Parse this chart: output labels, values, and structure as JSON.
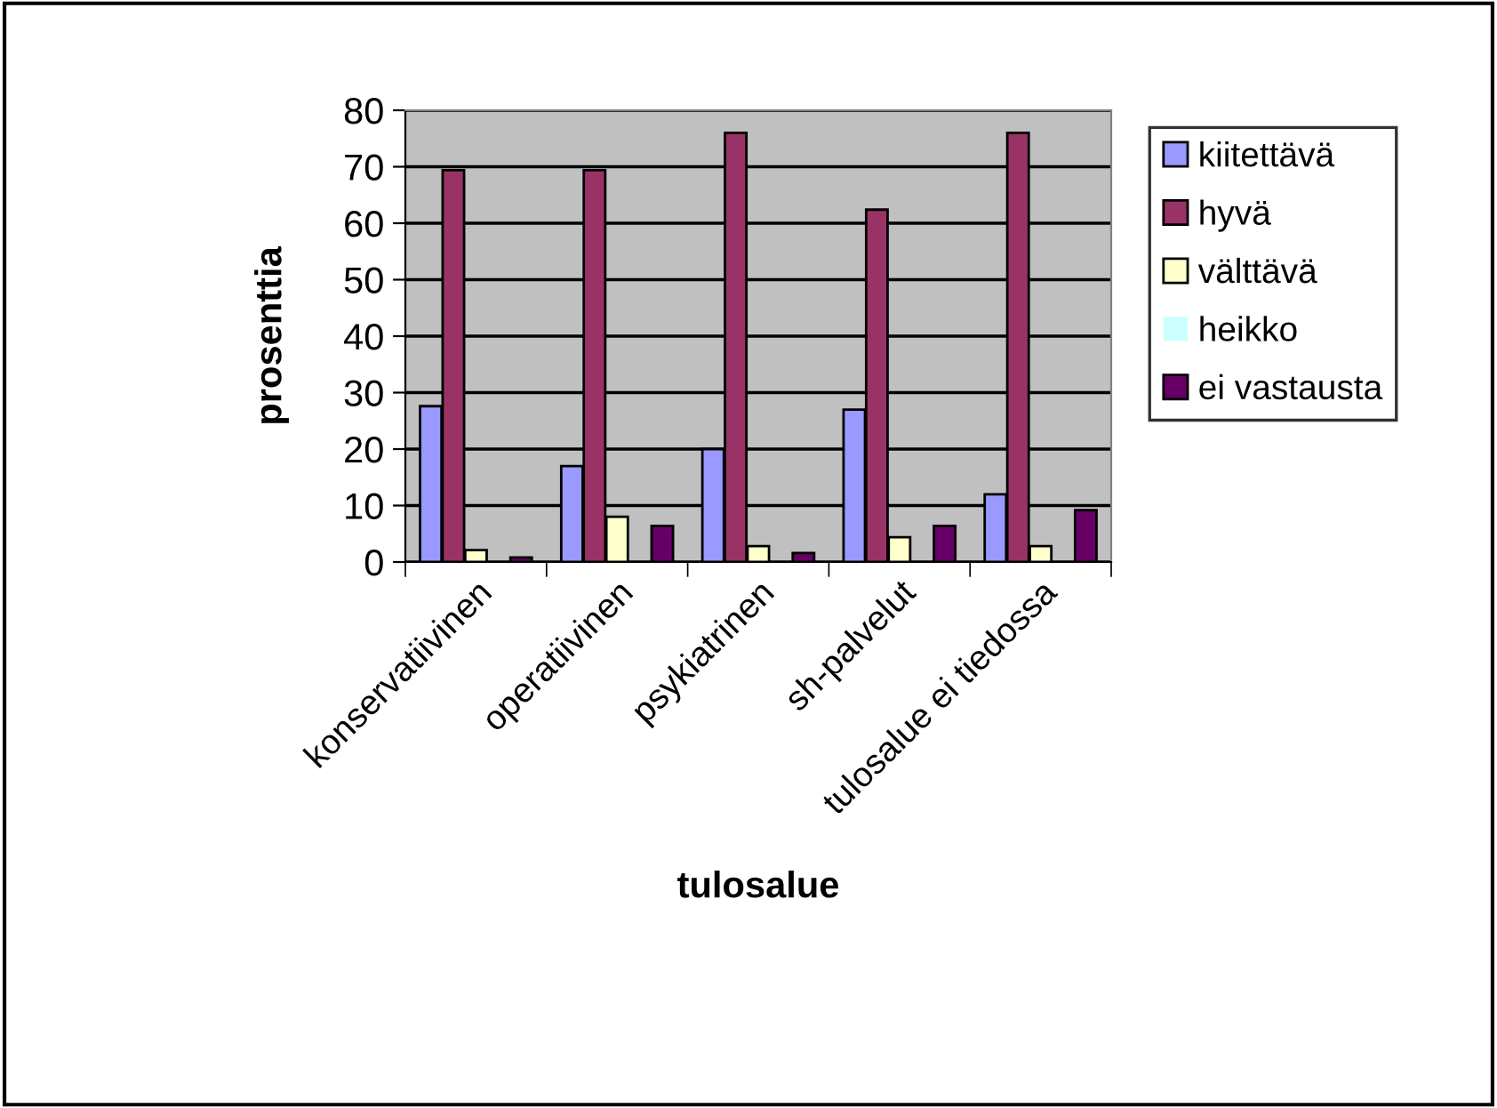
{
  "chart_data": {
    "type": "bar",
    "xlabel": "tulosalue",
    "ylabel": "prosenttia",
    "categories": [
      "konservatiivinen",
      "operatiivinen",
      "psykiatrinen",
      "sh-palvelut",
      "tulosalue ei tiedossa"
    ],
    "series": [
      {
        "name": "kiitettävä",
        "color": "#9999ff",
        "values": [
          27.6,
          17,
          20,
          27,
          12
        ]
      },
      {
        "name": "hyvä",
        "color": "#993366",
        "values": [
          69.4,
          69.4,
          76,
          62.4,
          76
        ]
      },
      {
        "name": "välttävä",
        "color": "#ffffcc",
        "values": [
          2.1,
          8,
          2.8,
          4.4,
          2.8
        ]
      },
      {
        "name": "heikko",
        "color": "#ccffff",
        "values": [
          0,
          0,
          0,
          0,
          0
        ]
      },
      {
        "name": "ei vastausta",
        "color": "#660066",
        "values": [
          0.8,
          6.4,
          1.6,
          6.4,
          9.2
        ]
      }
    ],
    "ylim": [
      0,
      80
    ],
    "yticks": [
      0,
      10,
      20,
      30,
      40,
      50,
      60,
      70,
      80
    ],
    "grid": "y",
    "legend": "right"
  }
}
